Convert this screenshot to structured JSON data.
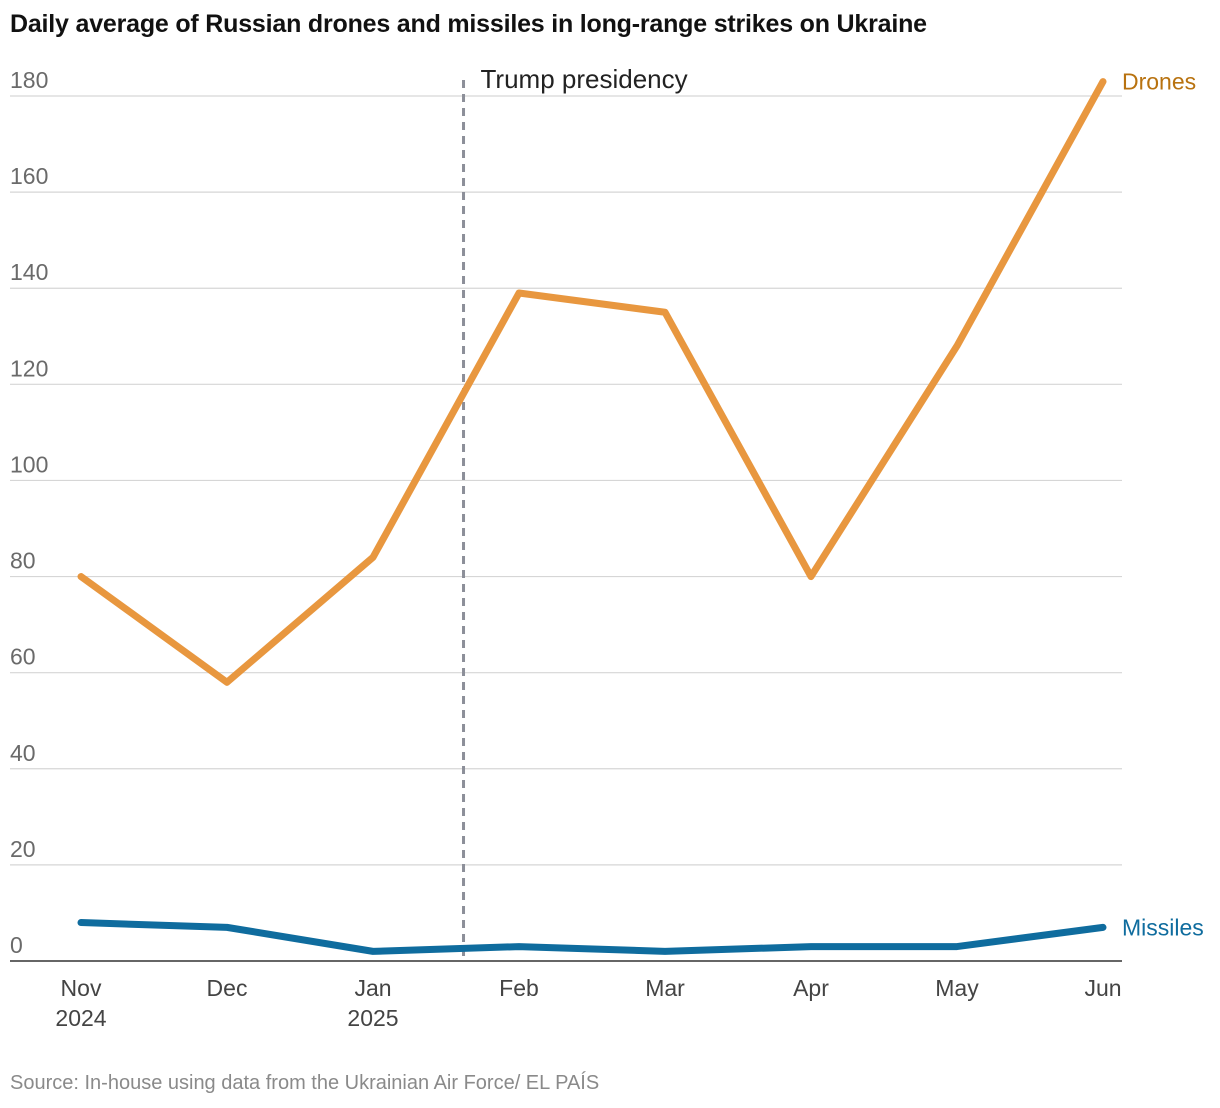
{
  "title": "Daily average of Russian drones and missiles in long-range strikes on Ukraine",
  "source": "Source: In-house using data from the Ukrainian Air Force/ EL PAÍS",
  "chart_data": {
    "type": "line",
    "title": "Daily average of Russian drones and missiles in long-range strikes on Ukraine",
    "xlabel": "",
    "ylabel": "",
    "ylim": [
      0,
      180
    ],
    "yticks": [
      0,
      20,
      40,
      60,
      80,
      100,
      120,
      140,
      160,
      180
    ],
    "categories": [
      {
        "month": "Nov",
        "year": "2024"
      },
      {
        "month": "Dec",
        "year": ""
      },
      {
        "month": "Jan",
        "year": "2025"
      },
      {
        "month": "Feb",
        "year": ""
      },
      {
        "month": "Mar",
        "year": ""
      },
      {
        "month": "Apr",
        "year": ""
      },
      {
        "month": "May",
        "year": ""
      },
      {
        "month": "Jun",
        "year": ""
      }
    ],
    "series": [
      {
        "name": "Drones",
        "color": "#e8973f",
        "label_color": "#b8720f",
        "values": [
          80,
          58,
          84,
          139,
          135,
          80,
          128,
          183
        ]
      },
      {
        "name": "Missiles",
        "color": "#0f6c9e",
        "label_color": "#0f6c9e",
        "values": [
          8,
          7,
          2,
          3,
          2,
          3,
          3,
          7
        ]
      }
    ],
    "annotations": [
      {
        "text": "Trump presidency",
        "x_between": [
          2,
          3
        ],
        "x_position": 2.62,
        "style": "dashed-vertical-line"
      }
    ],
    "grid": true,
    "legend": "inline-right"
  }
}
